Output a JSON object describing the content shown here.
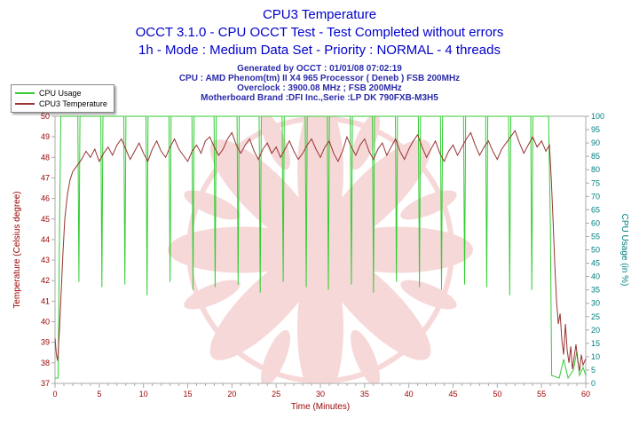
{
  "header": {
    "title": "CPU3 Temperature",
    "subtitle1": "OCCT 3.1.0 - CPU OCCT Test - Test Completed without errors",
    "subtitle2": "1h - Mode : Medium Data Set - Priority : NORMAL - 4 threads",
    "info1": "Generated by OCCT : 01/01/08 07:02:19",
    "info2": "CPU : AMD Phenom(tm) II X4 965 Processor ( Deneb ) FSB 200MHz",
    "info3": "Overclock : 3900.08 MHz ; FSB 200MHz",
    "info4": "Motherboard Brand :DFI Inc.,Serie :LP DK 790FXB-M3H5"
  },
  "legend": {
    "items": [
      {
        "label": "CPU Usage",
        "color": "#33cc33"
      },
      {
        "label": "CPU3 Temperature",
        "color": "#993333"
      }
    ]
  },
  "chart_data": {
    "type": "line",
    "title": "CPU3 Temperature",
    "xlabel": "Time (Minutes)",
    "ylabel_left": "Temperature (Celsius degree)",
    "ylabel_right": "CPU Usage (in %)",
    "x_range": [
      0,
      60
    ],
    "x_ticks": [
      0,
      5,
      10,
      15,
      20,
      25,
      30,
      35,
      40,
      45,
      50,
      55,
      60
    ],
    "y_left_range": [
      37,
      50
    ],
    "y_left_ticks": [
      37,
      38,
      39,
      40,
      41,
      42,
      43,
      44,
      45,
      46,
      47,
      48,
      49,
      50
    ],
    "y_right_range": [
      0,
      100
    ],
    "y_right_ticks": [
      0,
      5,
      10,
      15,
      20,
      25,
      30,
      35,
      40,
      45,
      50,
      55,
      60,
      65,
      70,
      75,
      80,
      85,
      90,
      95,
      100
    ],
    "grid": false,
    "legend_position": "top-left",
    "colors": {
      "left_axis": "#990000",
      "right_axis": "#008080",
      "watermark": "#f0b2b2",
      "frame": "#aaaaaa",
      "title_blue": "#0000cc"
    },
    "series": [
      {
        "name": "CPU Usage",
        "axis": "right",
        "color": "#33cc33",
        "points": [
          [
            0,
            2
          ],
          [
            0.35,
            2
          ],
          [
            0.5,
            55
          ],
          [
            0.65,
            100
          ],
          [
            2.58,
            100
          ],
          [
            2.7,
            38
          ],
          [
            2.82,
            100
          ],
          [
            5.18,
            100
          ],
          [
            5.3,
            36
          ],
          [
            5.42,
            100
          ],
          [
            7.78,
            100
          ],
          [
            7.9,
            37
          ],
          [
            8.02,
            100
          ],
          [
            10.28,
            100
          ],
          [
            10.4,
            33
          ],
          [
            10.52,
            100
          ],
          [
            12.88,
            100
          ],
          [
            13,
            38
          ],
          [
            13.12,
            100
          ],
          [
            15.48,
            100
          ],
          [
            15.6,
            35
          ],
          [
            15.72,
            100
          ],
          [
            17.98,
            100
          ],
          [
            18.1,
            36
          ],
          [
            18.22,
            100
          ],
          [
            20.58,
            100
          ],
          [
            20.7,
            37
          ],
          [
            20.82,
            100
          ],
          [
            23.08,
            100
          ],
          [
            23.2,
            34
          ],
          [
            23.32,
            100
          ],
          [
            25.68,
            100
          ],
          [
            25.8,
            38
          ],
          [
            25.92,
            100
          ],
          [
            28.28,
            100
          ],
          [
            28.4,
            36
          ],
          [
            28.52,
            100
          ],
          [
            30.78,
            100
          ],
          [
            30.9,
            35
          ],
          [
            31.02,
            100
          ],
          [
            33.38,
            100
          ],
          [
            33.5,
            37
          ],
          [
            33.62,
            100
          ],
          [
            35.88,
            100
          ],
          [
            36,
            34
          ],
          [
            36.12,
            100
          ],
          [
            38.48,
            100
          ],
          [
            38.6,
            38
          ],
          [
            38.72,
            100
          ],
          [
            41.08,
            100
          ],
          [
            41.2,
            36
          ],
          [
            41.32,
            100
          ],
          [
            43.58,
            100
          ],
          [
            43.7,
            35
          ],
          [
            43.82,
            100
          ],
          [
            46.18,
            100
          ],
          [
            46.3,
            37
          ],
          [
            46.42,
            100
          ],
          [
            48.68,
            100
          ],
          [
            48.8,
            36
          ],
          [
            48.92,
            100
          ],
          [
            51.28,
            100
          ],
          [
            51.4,
            33
          ],
          [
            51.52,
            100
          ],
          [
            53.78,
            100
          ],
          [
            53.9,
            35
          ],
          [
            54.02,
            100
          ],
          [
            55.8,
            100
          ],
          [
            56,
            60
          ],
          [
            56.15,
            3
          ],
          [
            57,
            2
          ],
          [
            57.5,
            9
          ],
          [
            58,
            2
          ],
          [
            58.6,
            5
          ],
          [
            59,
            12
          ],
          [
            59.3,
            3
          ],
          [
            59.7,
            6
          ],
          [
            60,
            3
          ]
        ]
      },
      {
        "name": "CPU3 Temperature",
        "axis": "left",
        "color": "#993333",
        "points": [
          [
            0,
            39.2
          ],
          [
            0.15,
            38.4
          ],
          [
            0.3,
            38.1
          ],
          [
            0.5,
            39.6
          ],
          [
            0.7,
            41.5
          ],
          [
            0.9,
            43.4
          ],
          [
            1.1,
            45.0
          ],
          [
            1.4,
            46.2
          ],
          [
            1.7,
            46.9
          ],
          [
            2.0,
            47.3
          ],
          [
            2.5,
            47.6
          ],
          [
            3,
            47.9
          ],
          [
            3.5,
            48.3
          ],
          [
            4,
            48.0
          ],
          [
            4.5,
            48.4
          ],
          [
            5,
            47.8
          ],
          [
            5.5,
            48.2
          ],
          [
            6,
            48.5
          ],
          [
            6.5,
            48.1
          ],
          [
            7,
            48.6
          ],
          [
            7.5,
            48.9
          ],
          [
            8,
            48.4
          ],
          [
            8.5,
            47.9
          ],
          [
            9,
            48.3
          ],
          [
            9.5,
            48.7
          ],
          [
            10,
            48.2
          ],
          [
            10.5,
            47.8
          ],
          [
            11,
            48.4
          ],
          [
            11.5,
            48.8
          ],
          [
            12,
            48.3
          ],
          [
            12.5,
            48.0
          ],
          [
            13,
            48.5
          ],
          [
            13.5,
            48.9
          ],
          [
            14,
            48.4
          ],
          [
            14.5,
            48.1
          ],
          [
            15,
            47.8
          ],
          [
            15.5,
            48.3
          ],
          [
            16,
            48.6
          ],
          [
            16.5,
            48.2
          ],
          [
            17,
            48.8
          ],
          [
            17.5,
            49.0
          ],
          [
            18,
            48.5
          ],
          [
            18.5,
            48.1
          ],
          [
            19,
            48.4
          ],
          [
            19.5,
            48.9
          ],
          [
            20,
            49.2
          ],
          [
            20.5,
            48.6
          ],
          [
            21,
            48.2
          ],
          [
            21.5,
            48.6
          ],
          [
            22,
            48.9
          ],
          [
            22.5,
            48.3
          ],
          [
            23,
            47.9
          ],
          [
            23.5,
            48.4
          ],
          [
            24,
            48.7
          ],
          [
            24.5,
            48.2
          ],
          [
            25,
            48.5
          ],
          [
            25.5,
            48.0
          ],
          [
            26,
            48.4
          ],
          [
            26.5,
            48.8
          ],
          [
            27,
            48.3
          ],
          [
            27.5,
            47.9
          ],
          [
            28,
            48.2
          ],
          [
            28.5,
            48.6
          ],
          [
            29,
            48.9
          ],
          [
            29.5,
            48.4
          ],
          [
            30,
            48.0
          ],
          [
            30.5,
            48.5
          ],
          [
            31,
            48.8
          ],
          [
            31.5,
            48.2
          ],
          [
            32,
            47.8
          ],
          [
            32.5,
            48.3
          ],
          [
            33,
            49.0
          ],
          [
            33.5,
            48.5
          ],
          [
            34,
            48.1
          ],
          [
            34.5,
            48.6
          ],
          [
            35,
            48.9
          ],
          [
            35.5,
            48.3
          ],
          [
            36,
            47.9
          ],
          [
            36.5,
            48.4
          ],
          [
            37,
            48.7
          ],
          [
            37.5,
            48.1
          ],
          [
            38,
            48.5
          ],
          [
            38.5,
            48.9
          ],
          [
            39,
            48.3
          ],
          [
            39.5,
            47.9
          ],
          [
            40,
            48.4
          ],
          [
            40.5,
            48.8
          ],
          [
            41,
            49.1
          ],
          [
            41.5,
            48.5
          ],
          [
            42,
            48.0
          ],
          [
            42.5,
            48.4
          ],
          [
            43,
            48.8
          ],
          [
            43.5,
            48.2
          ],
          [
            44,
            47.8
          ],
          [
            44.5,
            48.3
          ],
          [
            45,
            48.6
          ],
          [
            45.5,
            48.1
          ],
          [
            46,
            48.5
          ],
          [
            46.5,
            48.9
          ],
          [
            47,
            49.2
          ],
          [
            47.5,
            48.6
          ],
          [
            48,
            48.1
          ],
          [
            48.5,
            48.5
          ],
          [
            49,
            48.8
          ],
          [
            49.5,
            48.3
          ],
          [
            50,
            47.9
          ],
          [
            50.5,
            48.4
          ],
          [
            51,
            48.7
          ],
          [
            51.5,
            49.0
          ],
          [
            52,
            49.3
          ],
          [
            52.5,
            48.7
          ],
          [
            53,
            48.2
          ],
          [
            53.5,
            48.6
          ],
          [
            54,
            49.0
          ],
          [
            54.5,
            48.5
          ],
          [
            55,
            48.8
          ],
          [
            55.5,
            48.3
          ],
          [
            55.9,
            48.6
          ],
          [
            56.1,
            47.0
          ],
          [
            56.3,
            45.0
          ],
          [
            56.5,
            42.8
          ],
          [
            56.7,
            41.0
          ],
          [
            56.9,
            39.9
          ],
          [
            57.1,
            40.4
          ],
          [
            57.3,
            39.1
          ],
          [
            57.5,
            38.4
          ],
          [
            57.7,
            39.9
          ],
          [
            57.9,
            38.6
          ],
          [
            58.1,
            38.0
          ],
          [
            58.3,
            38.8
          ],
          [
            58.5,
            37.7
          ],
          [
            58.7,
            38.3
          ],
          [
            58.9,
            38.9
          ],
          [
            59.1,
            38.1
          ],
          [
            59.3,
            37.6
          ],
          [
            59.5,
            38.4
          ],
          [
            59.7,
            37.9
          ],
          [
            60,
            38.2
          ]
        ]
      }
    ]
  }
}
